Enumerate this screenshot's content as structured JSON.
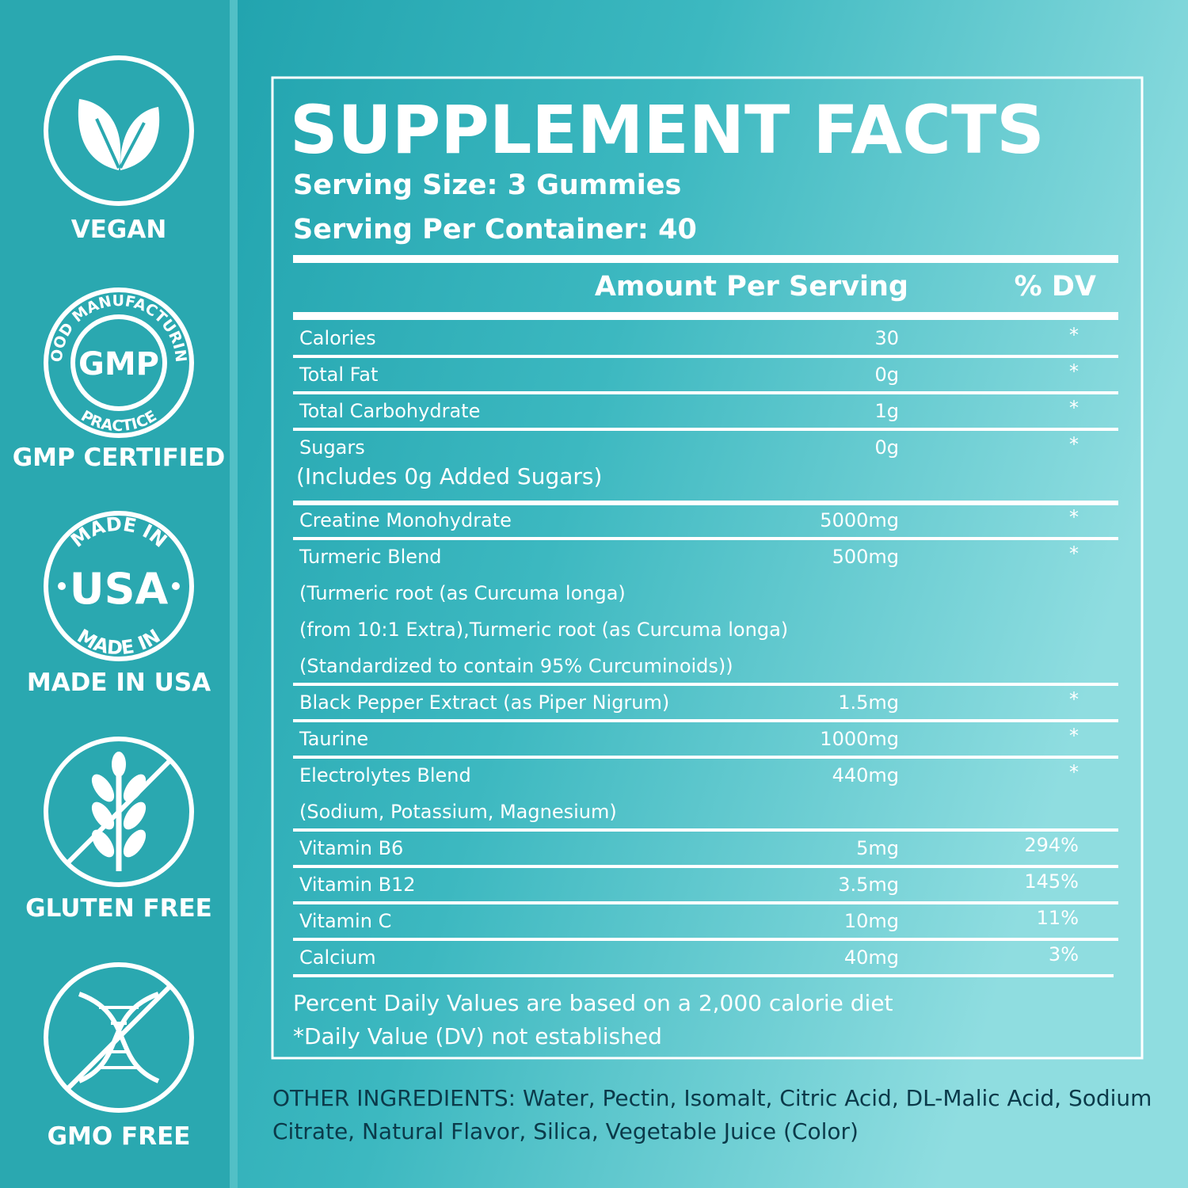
{
  "badges": {
    "vegan": "VEGAN",
    "gmp": "GMP CERTIFIED",
    "usa": "MADE IN USA",
    "gluten": "GLUTEN FREE",
    "gmo": "GMO FREE"
  },
  "gmp_seal": {
    "ring_top": "GOOD MANUFACTURING",
    "center": "GMP",
    "ring_bottom": "PRACTICE"
  },
  "usa_seal": {
    "ring_top": "MADE IN",
    "center": "USA",
    "ring_bottom": "MADE IN"
  },
  "facts": {
    "title": "SUPPLEMENT FACTS",
    "serving_size": "Serving Size: 3 Gummies",
    "servings_per_container": "Serving Per Container: 40",
    "header": {
      "amount": "Amount Per Serving",
      "dv": "% DV"
    },
    "rows": [
      {
        "name": "Calories",
        "amount": "30",
        "dv": "*"
      },
      {
        "name": "Total Fat",
        "amount": "0g",
        "dv": "*"
      },
      {
        "name": "Total Carbohydrate",
        "amount": "1g",
        "dv": "*"
      },
      {
        "name": "Sugars",
        "amount": "0g",
        "dv": "*",
        "details": [
          "(Includes 0g Added Sugars)"
        ]
      },
      {
        "name": "Creatine Monohydrate",
        "amount": "5000mg",
        "dv": "*"
      },
      {
        "name": "Turmeric Blend",
        "amount": "500mg",
        "dv": "*",
        "details": [
          "(Turmeric root (as Curcuma longa)",
          "(from 10:1 Extra),Turmeric root (as Curcuma longa)",
          "(Standardized to contain 95% Curcuminoids))"
        ]
      },
      {
        "name": "Black Pepper Extract (as Piper Nigrum)",
        "amount": "1.5mg",
        "dv": "*"
      },
      {
        "name": "Taurine",
        "amount": "1000mg",
        "dv": "*"
      },
      {
        "name": "Electrolytes Blend",
        "amount": "440mg",
        "dv": "*",
        "details": [
          "(Sodium, Potassium, Magnesium)"
        ]
      },
      {
        "name": "Vitamin B6",
        "amount": "5mg",
        "dv": "294%"
      },
      {
        "name": "Vitamin B12",
        "amount": "3.5mg",
        "dv": "145%"
      },
      {
        "name": "Vitamin C",
        "amount": "10mg",
        "dv": "11%"
      },
      {
        "name": "Calcium",
        "amount": "40mg",
        "dv": "3%"
      }
    ],
    "footnotes": [
      "Percent Daily Values are based on a 2,000 calorie diet",
      "*Daily Value (DV) not established"
    ]
  },
  "other_ingredients": [
    "OTHER INGREDIENTS: Water, Pectin, Isomalt, Citric Acid, DL-Malic Acid, Sodium",
    "Citrate, Natural Flavor, Silica, Vegetable Juice (Color)"
  ]
}
